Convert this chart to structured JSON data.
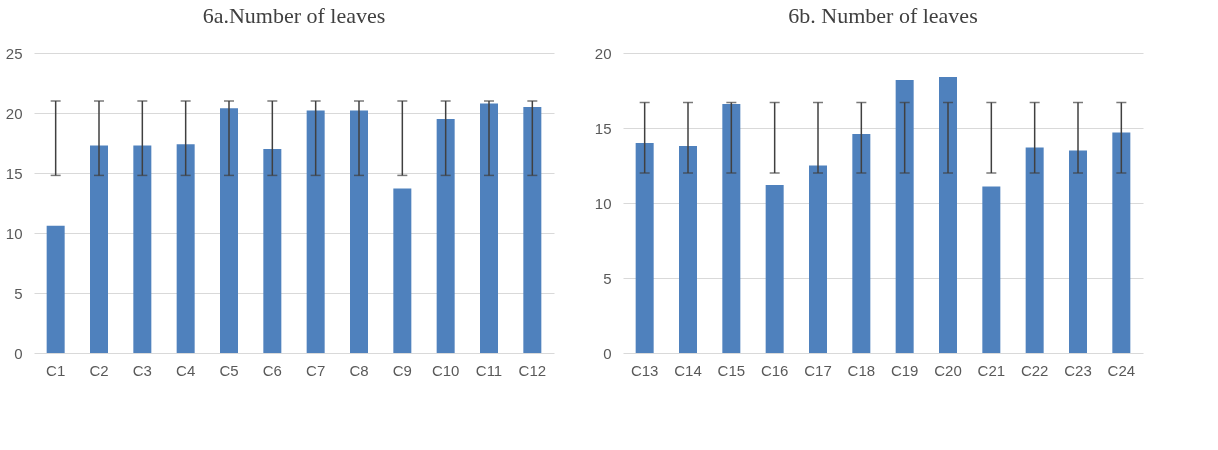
{
  "chart_data": [
    {
      "type": "bar",
      "title": "6a.Number of leaves",
      "categories": [
        "C1",
        "C2",
        "C3",
        "C4",
        "C5",
        "C6",
        "C7",
        "C8",
        "C9",
        "C10",
        "C11",
        "C12"
      ],
      "values": [
        10.6,
        17.3,
        17.3,
        17.4,
        20.4,
        17.0,
        20.2,
        20.2,
        13.7,
        19.5,
        20.8,
        20.5
      ],
      "errors": [
        [
          14.8,
          21.0
        ],
        [
          14.8,
          21.0
        ],
        [
          14.8,
          21.0
        ],
        [
          14.8,
          21.0
        ],
        [
          14.8,
          21.0
        ],
        [
          14.8,
          21.0
        ],
        [
          14.8,
          21.0
        ],
        [
          14.8,
          21.0
        ],
        [
          14.8,
          21.0
        ],
        [
          14.8,
          21.0
        ],
        [
          14.8,
          21.0
        ],
        [
          14.8,
          21.0
        ]
      ],
      "color": "#4f81bd",
      "ylim": [
        0,
        25
      ],
      "yticks": [
        0,
        5,
        10,
        15,
        20,
        25
      ],
      "grid": "y"
    },
    {
      "type": "bar",
      "title": "6b. Number of leaves",
      "categories": [
        "C13",
        "C14",
        "C15",
        "C16",
        "C17",
        "C18",
        "C19",
        "C20",
        "C21",
        "C22",
        "C23",
        "C24"
      ],
      "values": [
        14.0,
        13.8,
        16.6,
        11.2,
        12.5,
        14.6,
        18.2,
        18.4,
        11.1,
        13.7,
        13.5,
        14.7
      ],
      "errors": [
        [
          12.0,
          16.7
        ],
        [
          12.0,
          16.7
        ],
        [
          12.0,
          16.7
        ],
        [
          12.0,
          16.7
        ],
        [
          12.0,
          16.7
        ],
        [
          12.0,
          16.7
        ],
        [
          12.0,
          16.7
        ],
        [
          12.0,
          16.7
        ],
        [
          12.0,
          16.7
        ],
        [
          12.0,
          16.7
        ],
        [
          12.0,
          16.7
        ],
        [
          12.0,
          16.7
        ]
      ],
      "color": "#4f81bd",
      "ylim": [
        0,
        20
      ],
      "yticks": [
        0,
        5,
        10,
        15,
        20
      ],
      "grid": "y"
    }
  ]
}
